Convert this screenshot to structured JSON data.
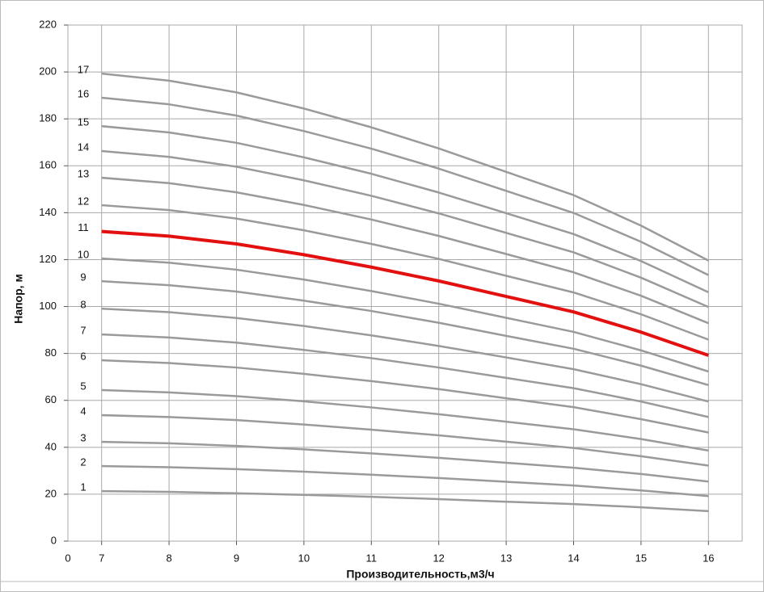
{
  "chart_data": {
    "type": "line",
    "y_label": "Напор, м",
    "x_label": "Производительность,м3/ч",
    "x_origin_label": "0",
    "x": [
      7,
      8,
      9,
      10,
      11,
      12,
      13,
      14,
      15,
      16
    ],
    "xlim": [
      6.5,
      16.5
    ],
    "xticks": [
      7,
      8,
      9,
      10,
      11,
      12,
      13,
      14,
      15,
      16
    ],
    "ylim": [
      0,
      220
    ],
    "yticks": [
      0,
      20,
      40,
      60,
      80,
      100,
      120,
      140,
      160,
      180,
      200,
      220
    ],
    "grid": true,
    "series": [
      {
        "name": "1",
        "color": "#9a9a9a",
        "values": [
          21.3,
          21.0,
          20.4,
          19.7,
          18.9,
          17.9,
          16.8,
          15.8,
          14.4,
          12.8
        ]
      },
      {
        "name": "2",
        "color": "#9a9a9a",
        "values": [
          32,
          31.5,
          30.7,
          29.6,
          28.3,
          26.9,
          25.3,
          23.7,
          21.6,
          19.2
        ]
      },
      {
        "name": "3",
        "color": "#9a9a9a",
        "values": [
          42.3,
          41.7,
          40.6,
          39.1,
          37.4,
          35.5,
          33.4,
          31.3,
          28.6,
          25.4
        ]
      },
      {
        "name": "4",
        "color": "#9a9a9a",
        "values": [
          53.7,
          52.9,
          51.6,
          49.7,
          47.5,
          45.1,
          42.4,
          39.7,
          36.2,
          32.2
        ]
      },
      {
        "name": "5",
        "color": "#9a9a9a",
        "values": [
          64.4,
          63.4,
          61.8,
          59.6,
          57.0,
          54.1,
          50.9,
          47.7,
          43.5,
          38.6
        ]
      },
      {
        "name": "6",
        "color": "#9a9a9a",
        "values": [
          77.1,
          75.9,
          74.0,
          71.3,
          68.2,
          64.8,
          60.9,
          57.1,
          52.0,
          46.3
        ]
      },
      {
        "name": "7",
        "color": "#9a9a9a",
        "values": [
          88.1,
          86.8,
          84.6,
          81.5,
          78.0,
          74.0,
          69.6,
          65.2,
          59.5,
          52.9
        ]
      },
      {
        "name": "8",
        "color": "#9a9a9a",
        "values": [
          99.1,
          97.6,
          95.1,
          91.7,
          87.7,
          83.2,
          78.3,
          73.3,
          66.9,
          59.5
        ]
      },
      {
        "name": "9",
        "color": "#9a9a9a",
        "values": [
          110.8,
          109.1,
          106.4,
          102.5,
          98.1,
          93.1,
          87.5,
          82.0,
          74.8,
          66.5
        ]
      },
      {
        "name": "10",
        "color": "#9a9a9a",
        "values": [
          120.5,
          118.7,
          115.7,
          111.5,
          106.6,
          101.2,
          95.2,
          89.2,
          81.3,
          72.3
        ]
      },
      {
        "name": "11",
        "color": "#e31010",
        "values": [
          132,
          130.0,
          126.7,
          122.1,
          116.8,
          110.9,
          104.3,
          97.7,
          89.1,
          79.2
        ]
      },
      {
        "name": "12",
        "color": "#9a9a9a",
        "values": [
          143.2,
          141.1,
          137.5,
          132.5,
          126.7,
          120.3,
          113.1,
          106.0,
          96.7,
          85.9
        ]
      },
      {
        "name": "13",
        "color": "#9a9a9a",
        "values": [
          154.9,
          152.6,
          148.7,
          143.3,
          137.1,
          130.1,
          122.4,
          114.6,
          104.6,
          92.9
        ]
      },
      {
        "name": "14",
        "color": "#9a9a9a",
        "values": [
          166.3,
          163.8,
          159.6,
          153.8,
          147.2,
          139.7,
          131.4,
          123.1,
          112.3,
          99.8
        ]
      },
      {
        "name": "15",
        "color": "#9a9a9a",
        "values": [
          176.9,
          174.2,
          169.8,
          163.6,
          156.6,
          148.6,
          139.8,
          130.9,
          119.4,
          106.1
        ]
      },
      {
        "name": "16",
        "color": "#9a9a9a",
        "values": [
          189,
          186.2,
          181.4,
          174.8,
          167.3,
          158.8,
          149.3,
          139.9,
          127.6,
          113.4
        ]
      },
      {
        "name": "17",
        "color": "#9a9a9a",
        "values": [
          199.3,
          196.3,
          191.3,
          184.4,
          176.4,
          167.4,
          157.4,
          147.5,
          134.5,
          119.6
        ]
      }
    ]
  }
}
